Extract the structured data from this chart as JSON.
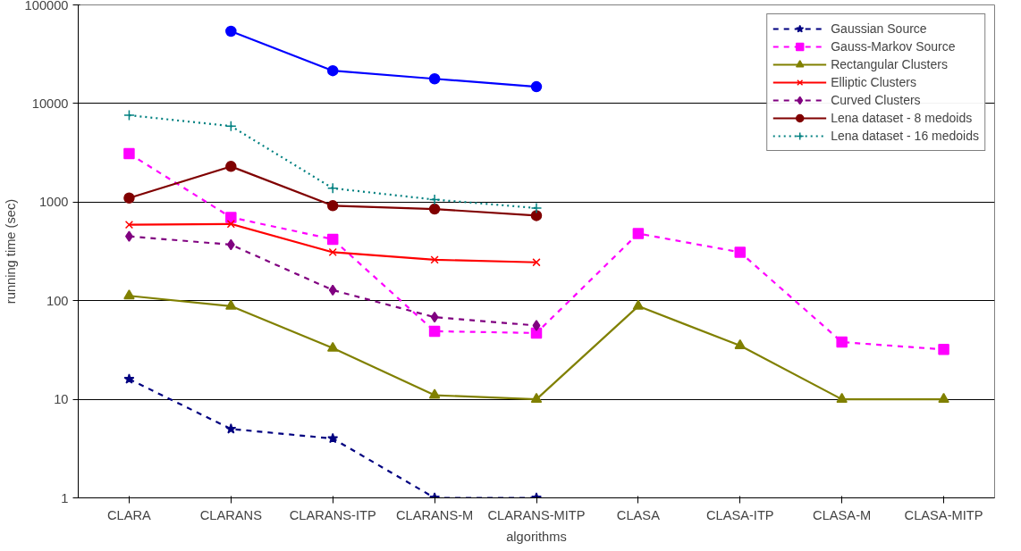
{
  "chart_data": {
    "type": "line",
    "xlabel": "algorithms",
    "ylabel": "running time (sec)",
    "categories": [
      "CLARA",
      "CLARANS",
      "CLARANS-ITP",
      "CLARANS-M",
      "CLARANS-MITP",
      "CLASA",
      "CLASA-ITP",
      "CLASA-M",
      "CLASA-MITP"
    ],
    "log": "y",
    "ylim": [
      1,
      100000
    ],
    "yticks": [
      1,
      10,
      100,
      1000,
      10000,
      100000
    ],
    "grid": "y",
    "legend": "top right",
    "series": [
      {
        "name": "Gaussian Source",
        "color": "#000080",
        "marker": "star",
        "line_style": "dashed",
        "values": [
          16,
          5,
          4,
          1,
          1,
          null,
          null,
          null,
          null
        ]
      },
      {
        "name": "Gauss-Markov Source",
        "color": "#ff00ff",
        "marker": "square",
        "line_style": "dashed",
        "values": [
          3100,
          700,
          420,
          49,
          47,
          480,
          310,
          38,
          32
        ]
      },
      {
        "name": "Rectangular Clusters",
        "color": "#808000",
        "marker": "triangle",
        "line_style": "solid",
        "values": [
          112,
          88,
          33,
          11,
          10,
          88,
          35,
          10,
          10
        ]
      },
      {
        "name": "Elliptic Clusters",
        "color": "#ff0000",
        "marker": "x",
        "line_style": "solid",
        "values": [
          590,
          600,
          310,
          260,
          245,
          null,
          null,
          null,
          null
        ]
      },
      {
        "name": "Curved Clusters",
        "color": "#800080",
        "marker": "diamond",
        "line_style": "dashed",
        "values": [
          450,
          370,
          128,
          68,
          56,
          null,
          null,
          null,
          null
        ]
      },
      {
        "name": "Lena dataset - 8 medoids",
        "color": "#800000",
        "marker": "circle",
        "line_style": "solid",
        "values": [
          1100,
          2300,
          920,
          850,
          730,
          null,
          null,
          null,
          null
        ]
      },
      {
        "name": "Lena dataset - 16 medoids",
        "color": "#008080",
        "marker": "cross",
        "line_style": "dotted",
        "values": [
          7600,
          5900,
          1380,
          1060,
          870,
          null,
          null,
          null,
          null
        ]
      },
      {
        "color": "#0000ff",
        "marker": "circle",
        "line_style": "solid",
        "values": [
          null,
          54000,
          21500,
          17800,
          14800,
          null,
          null,
          null,
          null
        ]
      }
    ]
  }
}
